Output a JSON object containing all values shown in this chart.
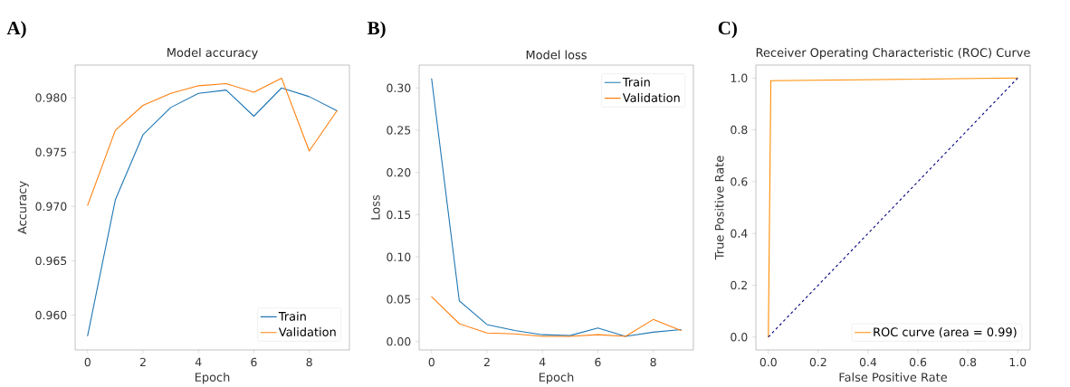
{
  "chart_data": [
    {
      "type": "line",
      "title": "Model accuracy",
      "xlabel": "Epoch",
      "ylabel": "Accuracy",
      "annotations": [
        "A)"
      ],
      "xlim": [
        -0.45,
        9.45
      ],
      "ylim": [
        0.9568,
        0.983
      ],
      "xticks": [
        0,
        2,
        4,
        6,
        8
      ],
      "yticks": [
        {
          "value": 0.96,
          "label": "0.960"
        },
        {
          "value": 0.965,
          "label": "0.965"
        },
        {
          "value": 0.97,
          "label": "0.970"
        },
        {
          "value": 0.975,
          "label": "0.975"
        },
        {
          "value": 0.98,
          "label": "0.980"
        }
      ],
      "legend": "bottom right",
      "x": [
        0,
        1,
        2,
        3,
        4,
        5,
        6,
        7,
        8,
        9
      ],
      "series": [
        {
          "name": "Train",
          "color": "#1f77b4",
          "values": [
            0.9581,
            0.9706,
            0.9766,
            0.9791,
            0.9804,
            0.9807,
            0.9783,
            0.9809,
            0.9801,
            0.9788
          ]
        },
        {
          "name": "Validation",
          "color": "#ff7f0e",
          "values": [
            0.9701,
            0.977,
            0.9793,
            0.9804,
            0.9811,
            0.9813,
            0.9805,
            0.9818,
            0.9751,
            0.9788
          ]
        }
      ]
    },
    {
      "type": "line",
      "title": "Model loss",
      "xlabel": "Epoch",
      "ylabel": "Loss",
      "annotations": [
        "B)"
      ],
      "xlim": [
        -0.45,
        9.45
      ],
      "ylim": [
        -0.01,
        0.327
      ],
      "xticks": [
        0,
        2,
        4,
        6,
        8
      ],
      "yticks": [
        {
          "value": 0,
          "label": "0.00"
        },
        {
          "value": 0.05,
          "label": "0.05"
        },
        {
          "value": 0.1,
          "label": "0.10"
        },
        {
          "value": 0.15,
          "label": "0.15"
        },
        {
          "value": 0.2,
          "label": "0.20"
        },
        {
          "value": 0.25,
          "label": "0.25"
        },
        {
          "value": 0.3,
          "label": "0.30"
        }
      ],
      "legend": "top right",
      "x": [
        0,
        1,
        2,
        3,
        4,
        5,
        6,
        7,
        8,
        9
      ],
      "series": [
        {
          "name": "Train",
          "color": "#1f77b4",
          "values": [
            0.311,
            0.048,
            0.02,
            0.013,
            0.008,
            0.007,
            0.016,
            0.006,
            0.011,
            0.014
          ]
        },
        {
          "name": "Validation",
          "color": "#ff7f0e",
          "values": [
            0.053,
            0.021,
            0.01,
            0.009,
            0.006,
            0.006,
            0.008,
            0.006,
            0.026,
            0.013
          ]
        }
      ]
    },
    {
      "type": "line",
      "title": "Receiver Operating Characteristic (ROC) Curve",
      "xlabel": "False Positive Rate",
      "ylabel": "True Positive Rate",
      "annotations": [
        "C)"
      ],
      "xlim": [
        -0.05,
        1.05
      ],
      "ylim": [
        -0.05,
        1.05
      ],
      "xticks": [
        {
          "value": 0,
          "label": "0.0"
        },
        {
          "value": 0.2,
          "label": "0.2"
        },
        {
          "value": 0.4,
          "label": "0.4"
        },
        {
          "value": 0.6,
          "label": "0.6"
        },
        {
          "value": 0.8,
          "label": "0.8"
        },
        {
          "value": 1,
          "label": "1.0"
        }
      ],
      "yticks": [
        {
          "value": 0,
          "label": "0.0"
        },
        {
          "value": 0.2,
          "label": "0.2"
        },
        {
          "value": 0.4,
          "label": "0.4"
        },
        {
          "value": 0.6,
          "label": "0.6"
        },
        {
          "value": 0.8,
          "label": "0.8"
        },
        {
          "value": 1,
          "label": "1.0"
        }
      ],
      "legend": "bottom right",
      "series": [
        {
          "name": "ROC curve (area = 0.99)",
          "color": "#ff8c00",
          "x": [
            0,
            0.01,
            1
          ],
          "values": [
            0,
            0.99,
            1
          ]
        },
        {
          "color": "#000080",
          "line_style": "dashed",
          "x": [
            0,
            1
          ],
          "values": [
            0,
            1
          ]
        }
      ]
    }
  ]
}
